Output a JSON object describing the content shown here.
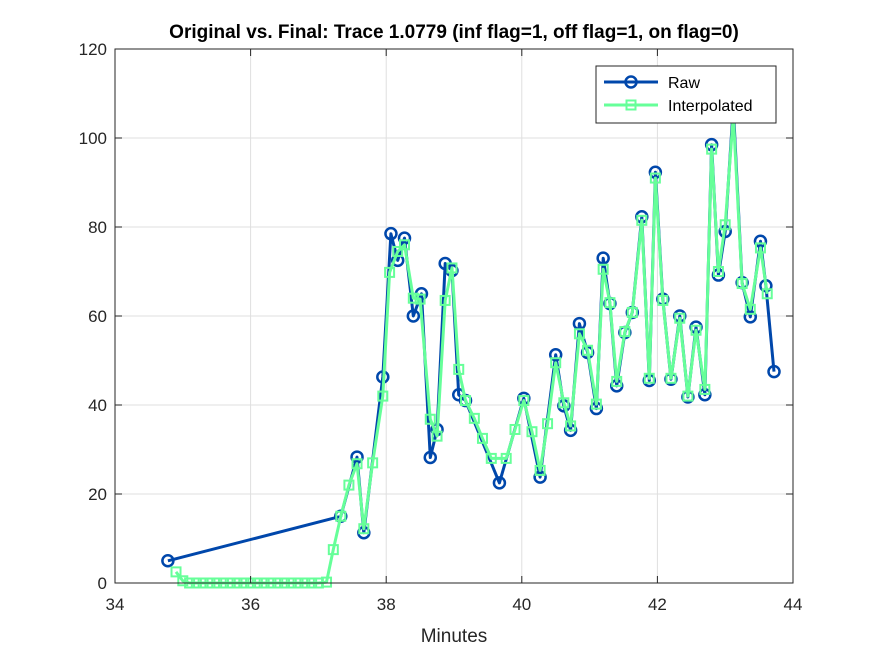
{
  "chart_data": {
    "type": "line",
    "title": "Original vs. Final: Trace 1.0779 (inf flag=1, off flag=1, on flag=0)",
    "xlabel": "Minutes",
    "ylabel": "",
    "xlim": [
      34,
      44
    ],
    "ylim": [
      0,
      120
    ],
    "xticks": [
      34,
      36,
      38,
      40,
      42,
      44
    ],
    "yticks": [
      0,
      20,
      40,
      60,
      80,
      100,
      120
    ],
    "grid": true,
    "legend_position": "top-right",
    "series": [
      {
        "name": "Raw",
        "color": "#0047AB",
        "marker": "circle",
        "points": [
          [
            34.78,
            5.0
          ],
          [
            37.33,
            15.0
          ],
          [
            37.57,
            28.3
          ],
          [
            37.67,
            11.3
          ],
          [
            37.95,
            46.3
          ],
          [
            38.07,
            78.5
          ],
          [
            38.17,
            72.5
          ],
          [
            38.27,
            77.5
          ],
          [
            38.4,
            60.0
          ],
          [
            38.52,
            65.0
          ],
          [
            38.65,
            28.2
          ],
          [
            38.75,
            34.5
          ],
          [
            38.87,
            71.8
          ],
          [
            38.97,
            70.2
          ],
          [
            39.07,
            42.3
          ],
          [
            39.17,
            41.0
          ],
          [
            39.67,
            22.5
          ],
          [
            40.03,
            41.5
          ],
          [
            40.27,
            23.8
          ],
          [
            40.5,
            51.3
          ],
          [
            40.62,
            39.8
          ],
          [
            40.72,
            34.3
          ],
          [
            40.85,
            58.3
          ],
          [
            40.97,
            51.8
          ],
          [
            41.1,
            39.2
          ],
          [
            41.2,
            73.0
          ],
          [
            41.3,
            62.8
          ],
          [
            41.4,
            44.3
          ],
          [
            41.52,
            56.3
          ],
          [
            41.63,
            60.8
          ],
          [
            41.77,
            82.3
          ],
          [
            41.88,
            45.5
          ],
          [
            41.97,
            92.3
          ],
          [
            42.08,
            63.8
          ],
          [
            42.2,
            45.8
          ],
          [
            42.33,
            60.0
          ],
          [
            42.45,
            41.8
          ],
          [
            42.57,
            57.5
          ],
          [
            42.7,
            42.3
          ],
          [
            42.8,
            98.5
          ],
          [
            42.9,
            69.2
          ],
          [
            43.0,
            79.0
          ],
          [
            43.12,
            107.0
          ],
          [
            43.25,
            67.5
          ],
          [
            43.37,
            59.8
          ],
          [
            43.52,
            76.8
          ],
          [
            43.6,
            66.8
          ],
          [
            43.72,
            47.5
          ]
        ]
      },
      {
        "name": "Interpolated",
        "color": "#66FF99",
        "marker": "square",
        "points": [
          [
            34.9,
            2.5
          ],
          [
            35.0,
            0.5
          ],
          [
            35.1,
            0.0
          ],
          [
            35.2,
            0.0
          ],
          [
            35.3,
            0.0
          ],
          [
            35.4,
            0.0
          ],
          [
            35.5,
            0.0
          ],
          [
            35.6,
            0.0
          ],
          [
            35.7,
            0.0
          ],
          [
            35.8,
            0.0
          ],
          [
            35.9,
            0.0
          ],
          [
            36.0,
            0.0
          ],
          [
            36.1,
            0.0
          ],
          [
            36.2,
            0.0
          ],
          [
            36.3,
            0.0
          ],
          [
            36.4,
            0.0
          ],
          [
            36.5,
            0.0
          ],
          [
            36.6,
            0.0
          ],
          [
            36.7,
            0.0
          ],
          [
            36.8,
            0.0
          ],
          [
            36.9,
            0.0
          ],
          [
            37.0,
            0.0
          ],
          [
            37.12,
            0.2
          ],
          [
            37.22,
            7.5
          ],
          [
            37.33,
            15.0
          ],
          [
            37.45,
            22.0
          ],
          [
            37.57,
            26.8
          ],
          [
            37.67,
            12.2
          ],
          [
            37.8,
            27.0
          ],
          [
            37.95,
            42.0
          ],
          [
            38.05,
            69.8
          ],
          [
            38.17,
            74.5
          ],
          [
            38.27,
            76.0
          ],
          [
            38.4,
            64.0
          ],
          [
            38.5,
            63.8
          ],
          [
            38.65,
            36.8
          ],
          [
            38.75,
            33.0
          ],
          [
            38.87,
            63.5
          ],
          [
            38.97,
            70.8
          ],
          [
            39.07,
            48.0
          ],
          [
            39.17,
            41.0
          ],
          [
            39.3,
            37.0
          ],
          [
            39.42,
            32.5
          ],
          [
            39.55,
            28.0
          ],
          [
            39.77,
            28.0
          ],
          [
            39.9,
            34.5
          ],
          [
            40.03,
            41.0
          ],
          [
            40.15,
            34.0
          ],
          [
            40.27,
            25.3
          ],
          [
            40.38,
            35.8
          ],
          [
            40.5,
            49.5
          ],
          [
            40.62,
            40.5
          ],
          [
            40.72,
            35.3
          ],
          [
            40.85,
            56.0
          ],
          [
            40.97,
            52.3
          ],
          [
            41.1,
            40.2
          ],
          [
            41.2,
            70.5
          ],
          [
            41.3,
            63.0
          ],
          [
            41.4,
            45.3
          ],
          [
            41.52,
            56.5
          ],
          [
            41.63,
            60.8
          ],
          [
            41.77,
            81.5
          ],
          [
            41.88,
            46.0
          ],
          [
            41.97,
            91.0
          ],
          [
            42.08,
            63.5
          ],
          [
            42.2,
            46.0
          ],
          [
            42.33,
            59.5
          ],
          [
            42.45,
            42.0
          ],
          [
            42.57,
            56.8
          ],
          [
            42.7,
            43.5
          ],
          [
            42.8,
            97.5
          ],
          [
            42.9,
            70.0
          ],
          [
            43.0,
            80.5
          ],
          [
            43.12,
            105.0
          ],
          [
            43.25,
            67.3
          ],
          [
            43.37,
            61.5
          ],
          [
            43.52,
            75.3
          ],
          [
            43.62,
            65.0
          ]
        ]
      }
    ]
  }
}
